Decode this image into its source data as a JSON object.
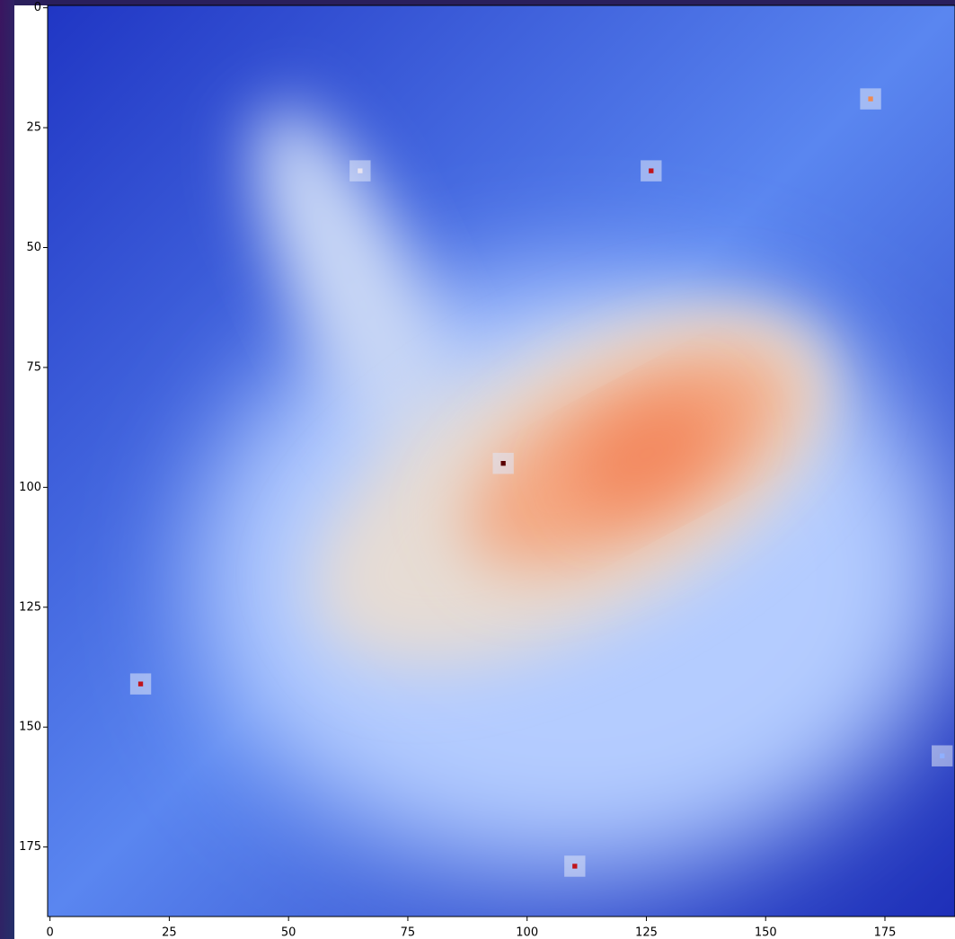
{
  "chart_data": {
    "type": "heatmap",
    "xlim": [
      -0.5,
      189.5
    ],
    "ylim": [
      189.5,
      -0.5
    ],
    "xticks": [
      0,
      25,
      50,
      75,
      100,
      125,
      150,
      175
    ],
    "yticks": [
      0,
      25,
      50,
      75,
      100,
      125,
      150,
      175
    ],
    "points": {
      "x": [
        95,
        126,
        65,
        172,
        19,
        110,
        187
      ],
      "y": [
        95,
        34,
        34,
        19,
        141,
        179,
        156
      ],
      "colors": [
        "#5a0000",
        "#c0141c",
        "#e8e4f0",
        "#f08a50",
        "#c0141c",
        "#c0141c",
        "#8fb0ff"
      ]
    }
  }
}
